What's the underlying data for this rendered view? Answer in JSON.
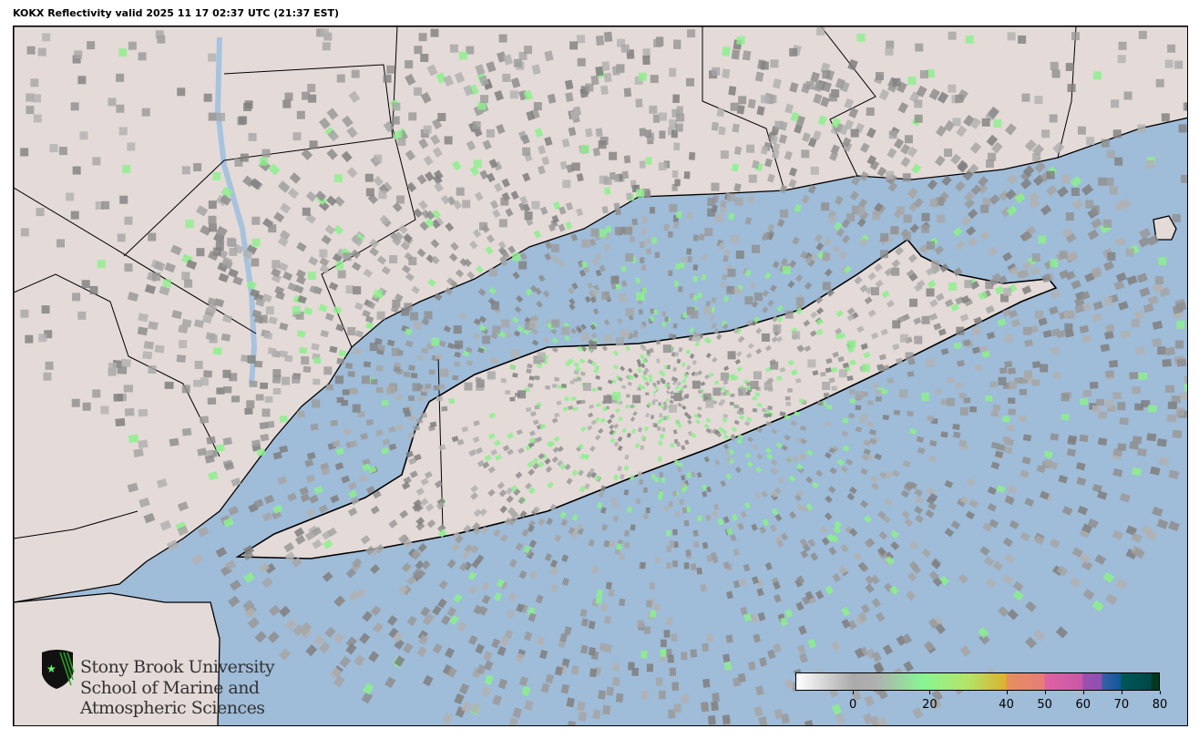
{
  "title": "KOKX Reflectivity valid 2025 11 17 02:37 UTC (21:37 EST)",
  "map": {
    "radar_site": "KOKX",
    "colors": {
      "ocean": "#9fbcd8",
      "land": "#e4dad8",
      "border": "#000000",
      "water": "#a7c3dd"
    }
  },
  "logo": {
    "line1": "Stony Brook University",
    "line2": "School of Marine and",
    "line3": "Atmospheric Sciences"
  },
  "colorbar": {
    "min": -15,
    "max": 80,
    "ticks": [
      {
        "value": 0,
        "label": "0"
      },
      {
        "value": 20,
        "label": "20"
      },
      {
        "value": 40,
        "label": "40"
      },
      {
        "value": 50,
        "label": "50"
      },
      {
        "value": 60,
        "label": "60"
      },
      {
        "value": 70,
        "label": "70"
      },
      {
        "value": 80,
        "label": "80"
      }
    ],
    "stops": [
      {
        "value": -15,
        "color": "#ffffff"
      },
      {
        "value": 0,
        "color": "#aaaaaa"
      },
      {
        "value": 6,
        "color": "#b0b0b0"
      },
      {
        "value": 18,
        "color": "#88f594"
      },
      {
        "value": 30,
        "color": "#b4e468"
      },
      {
        "value": 40,
        "color": "#deb02c"
      },
      {
        "value": 40.1,
        "color": "#e6905c"
      },
      {
        "value": 50,
        "color": "#e67c78"
      },
      {
        "value": 50.1,
        "color": "#e062a0"
      },
      {
        "value": 60,
        "color": "#c858a8"
      },
      {
        "value": 60.1,
        "color": "#9c50b0"
      },
      {
        "value": 65,
        "color": "#9050b0"
      },
      {
        "value": 65.1,
        "color": "#3860a8"
      },
      {
        "value": 70,
        "color": "#105898"
      },
      {
        "value": 70.1,
        "color": "#005858"
      },
      {
        "value": 78,
        "color": "#004848"
      },
      {
        "value": 78.1,
        "color": "#003820"
      },
      {
        "value": 80,
        "color": "#003820"
      }
    ]
  }
}
